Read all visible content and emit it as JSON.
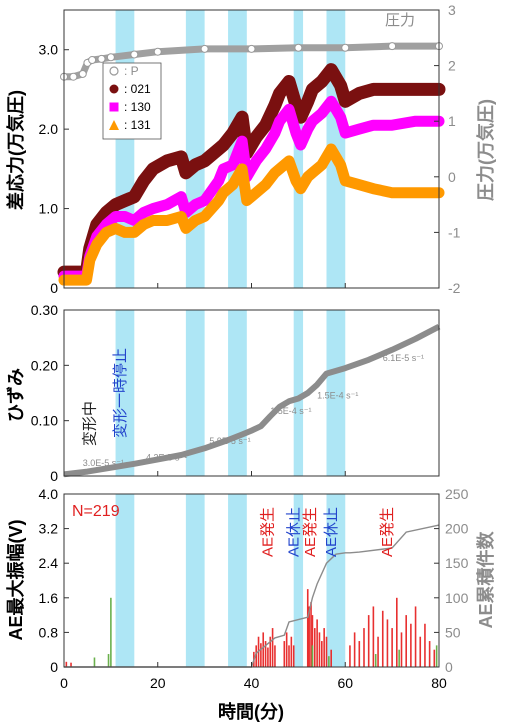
{
  "figure": {
    "xlabel": "時間(分)",
    "xticks": [
      0,
      20,
      40,
      60,
      80
    ],
    "bands": [
      [
        11,
        15
      ],
      [
        26,
        30
      ],
      [
        35,
        39
      ],
      [
        49,
        51
      ],
      [
        56,
        60
      ]
    ]
  },
  "chart_data": [
    {
      "type": "line",
      "ylabel": "差応力(万気圧)",
      "ylim": [
        0,
        3.5
      ],
      "yticks": [
        0,
        1.0,
        2.0,
        3.0
      ],
      "y2label": "圧力(万気圧)",
      "y2_inline_label": "圧力",
      "y2lim": [
        -2,
        3
      ],
      "y2ticks": [
        -2,
        -1,
        0,
        1,
        2,
        3
      ],
      "legend": {
        "position": "top-left",
        "entries": [
          "P",
          "021",
          "130",
          "131"
        ]
      },
      "pressure": {
        "name": "P",
        "color": "#a0a0a0",
        "x": [
          0,
          2,
          4,
          5,
          6,
          8,
          10,
          15,
          20,
          30,
          40,
          50,
          60,
          70,
          80
        ],
        "y": [
          1.8,
          1.8,
          1.85,
          2.05,
          2.1,
          2.12,
          2.15,
          2.2,
          2.25,
          2.3,
          2.3,
          2.32,
          2.32,
          2.35,
          2.35
        ]
      },
      "series": [
        {
          "name": "021",
          "color": "#7a1010",
          "x": [
            0,
            3,
            4.8,
            5.5,
            7,
            9,
            11,
            13,
            15,
            17,
            19,
            22,
            25,
            26,
            28,
            30,
            33,
            34,
            36,
            38,
            39,
            41,
            43,
            45,
            46,
            48,
            49.5,
            50.5,
            52,
            53,
            55,
            57,
            59,
            60,
            63,
            66,
            70,
            75,
            80
          ],
          "y": [
            0.2,
            0.2,
            0.2,
            0.5,
            0.8,
            0.95,
            1.05,
            1.1,
            1.15,
            1.35,
            1.5,
            1.6,
            1.65,
            1.45,
            1.55,
            1.6,
            1.75,
            1.8,
            1.95,
            2.15,
            1.7,
            1.9,
            2.05,
            2.3,
            2.45,
            2.6,
            2.3,
            2.15,
            2.35,
            2.5,
            2.6,
            2.75,
            2.55,
            2.35,
            2.45,
            2.5,
            2.5,
            2.5,
            2.5
          ]
        },
        {
          "name": "130",
          "color": "#ff00ff",
          "x": [
            0,
            3,
            4.8,
            5.5,
            7,
            9,
            11,
            13,
            15,
            17,
            19,
            22,
            25,
            26,
            28,
            30,
            33,
            34,
            36,
            38,
            39,
            41,
            43,
            45,
            46,
            48,
            49.5,
            50.5,
            52,
            53,
            55,
            57,
            59,
            60,
            63,
            66,
            70,
            75,
            80
          ],
          "y": [
            0.15,
            0.15,
            0.15,
            0.4,
            0.65,
            0.8,
            0.9,
            0.9,
            0.85,
            0.95,
            1.0,
            1.05,
            1.15,
            0.95,
            1.05,
            1.1,
            1.35,
            1.5,
            1.55,
            1.85,
            1.4,
            1.6,
            1.75,
            1.95,
            2.1,
            2.25,
            1.95,
            1.8,
            2.0,
            2.1,
            2.2,
            2.35,
            2.15,
            1.95,
            2.0,
            2.05,
            2.05,
            2.1,
            2.1
          ]
        },
        {
          "name": "131",
          "color": "#ff9900",
          "x": [
            0,
            3,
            4.8,
            5.5,
            7,
            9,
            11,
            13,
            15,
            17,
            19,
            22,
            25,
            26,
            28,
            30,
            33,
            34,
            36,
            38,
            39,
            41,
            43,
            45,
            46,
            48,
            49.5,
            50.5,
            52,
            53,
            55,
            57,
            59,
            60,
            63,
            66,
            70,
            75,
            80
          ],
          "y": [
            0.1,
            0.1,
            0.1,
            0.35,
            0.55,
            0.7,
            0.75,
            0.7,
            0.7,
            0.8,
            0.85,
            0.85,
            0.9,
            0.75,
            0.85,
            0.9,
            1.1,
            1.2,
            1.3,
            1.5,
            1.1,
            1.2,
            1.3,
            1.45,
            1.5,
            1.6,
            1.35,
            1.25,
            1.4,
            1.45,
            1.55,
            1.75,
            1.55,
            1.35,
            1.3,
            1.25,
            1.2,
            1.2,
            1.2
          ]
        }
      ]
    },
    {
      "type": "line",
      "ylabel": "ひずみ",
      "ylim": [
        0,
        0.3
      ],
      "yticks": [
        0,
        0.1,
        0.2,
        0.3
      ],
      "series": [
        {
          "name": "",
          "color": "#8c8c8c",
          "x": [
            0,
            2,
            5,
            10,
            15,
            20,
            25,
            30,
            35,
            38,
            40,
            42,
            44,
            46,
            48,
            50,
            52,
            54,
            56,
            58,
            60,
            65,
            70,
            75,
            80
          ],
          "y": [
            0.003,
            0.005,
            0.008,
            0.015,
            0.022,
            0.03,
            0.038,
            0.05,
            0.065,
            0.075,
            0.082,
            0.09,
            0.108,
            0.125,
            0.135,
            0.14,
            0.15,
            0.165,
            0.185,
            0.19,
            0.195,
            0.21,
            0.228,
            0.248,
            0.27
          ]
        }
      ],
      "rates": [
        {
          "text": "3.0E-5 s⁻¹",
          "x": 4.0,
          "y": 0.018
        },
        {
          "text": "4.3E-5 s⁻¹",
          "x": 17.5,
          "y": 0.028
        },
        {
          "text": "5.9E-5 s⁻¹",
          "x": 31.0,
          "y": 0.058
        },
        {
          "text": "1.5E-4 s⁻¹",
          "x": 44.0,
          "y": 0.112
        },
        {
          "text": "1.5E-4 s⁻¹",
          "x": 54.0,
          "y": 0.14
        },
        {
          "text": "6.1E-5 s⁻¹",
          "x": 68.0,
          "y": 0.208
        }
      ],
      "annotations": [
        {
          "text": "変形中",
          "color": "#222222",
          "x": 6.5,
          "y": 0.095
        },
        {
          "text": "変形一時停止",
          "color": "#2244cc",
          "x": 13.0,
          "y": 0.15
        }
      ]
    },
    {
      "type": "bar",
      "ylabel": "AE最大振幅(V)",
      "ylim": [
        0,
        4.0
      ],
      "yticks": [
        0,
        0.8,
        1.6,
        2.4,
        3.2,
        4.0
      ],
      "y2label": "AE累積件数",
      "y2lim": [
        0,
        250
      ],
      "y2ticks": [
        0,
        50,
        100,
        150,
        200,
        250
      ],
      "n_label": "N=219",
      "events": [
        {
          "color": "#e83030",
          "x": [
            0.5,
            1.5,
            40.5,
            41,
            41.5,
            42,
            42.5,
            43,
            43.5,
            44,
            44.5,
            45,
            47,
            47.5,
            48,
            48.5,
            49,
            52,
            52.3,
            52.7,
            53,
            53.5,
            54,
            54.5,
            55,
            55.5,
            56,
            57,
            61,
            62,
            63,
            64,
            65,
            66,
            67,
            68,
            69,
            70,
            71,
            72,
            73,
            74,
            75,
            76,
            77,
            78,
            79
          ],
          "y": [
            0.12,
            0.1,
            0.35,
            0.5,
            0.7,
            0.55,
            0.8,
            0.6,
            0.45,
            0.7,
            0.9,
            0.5,
            0.6,
            0.8,
            0.5,
            0.7,
            0.5,
            1.8,
            1.4,
            1.5,
            1.2,
            0.9,
            1.1,
            0.8,
            0.6,
            0.9,
            0.7,
            0.4,
            0.5,
            0.8,
            0.6,
            0.9,
            1.2,
            1.4,
            0.7,
            1.3,
            1.1,
            0.9,
            1.6,
            0.8,
            1.2,
            1.0,
            1.4,
            0.7,
            1.0,
            0.6,
            0.4
          ]
        },
        {
          "color": "#6ab04c",
          "x": [
            6.5,
            9.5,
            10,
            53,
            56.5,
            66.5,
            71.5,
            79.5
          ],
          "y": [
            0.22,
            0.3,
            1.6,
            0.5,
            0.25,
            0.3,
            0.4,
            0.5
          ]
        }
      ],
      "cumulative": {
        "name": "",
        "color": "#8c8c8c",
        "x": [
          0,
          40,
          41,
          45,
          47,
          48,
          52,
          53,
          54,
          56,
          58,
          60,
          61,
          63,
          70,
          73,
          80
        ],
        "y": [
          0,
          0,
          20,
          42,
          46,
          65,
          72,
          100,
          120,
          150,
          163,
          165,
          165,
          166,
          172,
          195,
          205
        ]
      },
      "annotations": [
        {
          "text": "AE発生",
          "color": "#e02020",
          "x": 44.5
        },
        {
          "text": "AE休止",
          "color": "#2244cc",
          "x": 50.0
        },
        {
          "text": "AE発生",
          "color": "#e02020",
          "x": 53.5
        },
        {
          "text": "AE休止",
          "color": "#2244cc",
          "x": 58.0
        },
        {
          "text": "AE発生",
          "color": "#e02020",
          "x": 70.0
        }
      ]
    }
  ]
}
